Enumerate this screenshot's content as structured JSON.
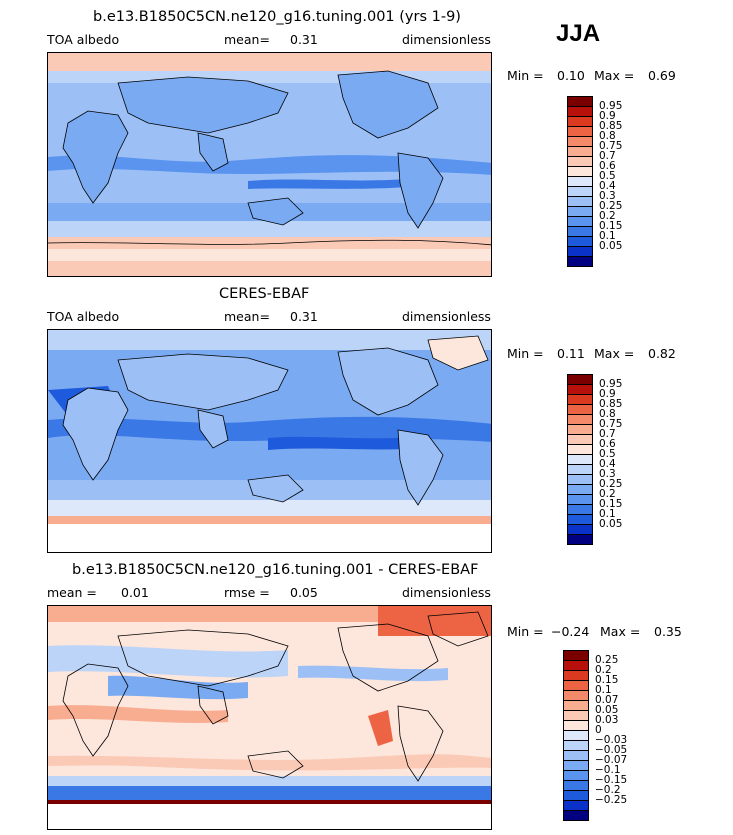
{
  "season": "JJA",
  "colors": {
    "base_palette": [
      "#000080",
      "#0a32c8",
      "#1e5adc",
      "#3a78e6",
      "#5a94ee",
      "#7aaaf2",
      "#9cc0f6",
      "#bcd4f8",
      "#dde8fa",
      "#fde6dc",
      "#fbcab6",
      "#f8ac90",
      "#f48a6a",
      "#ec6444",
      "#dc3a20",
      "#b8100a",
      "#7a0000"
    ],
    "diff_palette": [
      "#000080",
      "#0a32c8",
      "#1e5adc",
      "#3a78e6",
      "#5a94ee",
      "#7aaaf2",
      "#9cc0f6",
      "#bcd4f8",
      "#dde8fa",
      "#fde6dc",
      "#fbcab6",
      "#f8ac90",
      "#f48a6a",
      "#ec6444",
      "#dc3a20",
      "#b8100a",
      "#7a0000"
    ]
  },
  "panels": [
    {
      "id": "model",
      "title": "b.e13.B1850C5CN.ne120_g16.tuning.001 (yrs 1-9)",
      "left_label": "TOA albedo",
      "stat_label": "mean=",
      "stat_value": "0.31",
      "units": "dimensionless",
      "min_label": "Min =",
      "min_value": "0.10",
      "max_label": "Max =",
      "max_value": "0.69",
      "colorbar_labels": [
        "0.95",
        "0.9",
        "0.85",
        "0.8",
        "0.75",
        "0.7",
        "0.6",
        "0.5",
        "0.4",
        "0.3",
        "0.25",
        "0.2",
        "0.15",
        "0.1",
        "0.05"
      ]
    },
    {
      "id": "obs",
      "title": "CERES-EBAF",
      "left_label": "TOA albedo",
      "stat_label": "mean=",
      "stat_value": "0.31",
      "units": "dimensionless",
      "min_label": "Min =",
      "min_value": "0.11",
      "max_label": "Max =",
      "max_value": "0.82",
      "colorbar_labels": [
        "0.95",
        "0.9",
        "0.85",
        "0.8",
        "0.75",
        "0.7",
        "0.6",
        "0.5",
        "0.4",
        "0.3",
        "0.25",
        "0.2",
        "0.15",
        "0.1",
        "0.05"
      ]
    },
    {
      "id": "diff",
      "title": "b.e13.B1850C5CN.ne120_g16.tuning.001 - CERES-EBAF",
      "left_label": "mean =",
      "left_value": "0.01",
      "stat_label": "rmse =",
      "stat_value": "0.05",
      "units": "dimensionless",
      "min_label": "Min =",
      "min_value": "−0.24",
      "max_label": "Max =",
      "max_value": "0.35",
      "colorbar_labels": [
        "0.25",
        "0.2",
        "0.15",
        "0.1",
        "0.07",
        "0.05",
        "0.03",
        "0",
        "−0.03",
        "−0.05",
        "−0.07",
        "−0.1",
        "−0.15",
        "−0.2",
        "−0.25"
      ]
    }
  ]
}
